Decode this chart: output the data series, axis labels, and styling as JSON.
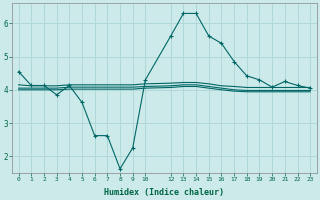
{
  "background_color": "#cceaea",
  "grid_color": "#b0d8d8",
  "line_color": "#006666",
  "xlabel": "Humidex (Indice chaleur)",
  "xlim": [
    -0.5,
    23.5
  ],
  "ylim": [
    1.5,
    6.6
  ],
  "yticks": [
    2,
    3,
    4,
    5,
    6
  ],
  "xticks": [
    0,
    1,
    2,
    3,
    4,
    5,
    6,
    7,
    8,
    9,
    10,
    12,
    13,
    14,
    15,
    16,
    17,
    18,
    19,
    20,
    21,
    22,
    23
  ],
  "series1_x": [
    0,
    1,
    2,
    3,
    4,
    5,
    6,
    7,
    8,
    9,
    10,
    12,
    13,
    14,
    15,
    16,
    17,
    18,
    19,
    20,
    21,
    22,
    23
  ],
  "series1_y": [
    4.55,
    4.13,
    4.13,
    3.85,
    4.13,
    3.62,
    2.62,
    2.62,
    1.62,
    2.25,
    4.3,
    5.62,
    6.3,
    6.3,
    5.62,
    5.4,
    4.85,
    4.42,
    4.3,
    4.08,
    4.25,
    4.13,
    4.05
  ],
  "series2_x": [
    0,
    1,
    2,
    3,
    4,
    5,
    6,
    7,
    8,
    9,
    10,
    12,
    13,
    14,
    15,
    16,
    17,
    18,
    19,
    20,
    21,
    22,
    23
  ],
  "series2_y": [
    4.15,
    4.12,
    4.12,
    4.12,
    4.15,
    4.15,
    4.15,
    4.15,
    4.15,
    4.15,
    4.18,
    4.2,
    4.22,
    4.22,
    4.18,
    4.12,
    4.1,
    4.07,
    4.07,
    4.07,
    4.07,
    4.07,
    4.07
  ],
  "series3_x": [
    0,
    1,
    2,
    3,
    4,
    5,
    6,
    7,
    8,
    9,
    10,
    12,
    13,
    14,
    15,
    16,
    17,
    18,
    19,
    20,
    21,
    22,
    23
  ],
  "series3_y": [
    4.05,
    4.05,
    4.05,
    4.05,
    4.08,
    4.08,
    4.08,
    4.08,
    4.08,
    4.08,
    4.1,
    4.12,
    4.15,
    4.15,
    4.1,
    4.05,
    4.0,
    3.98,
    3.98,
    3.98,
    3.98,
    3.98,
    3.98
  ],
  "series4_x": [
    0,
    1,
    2,
    3,
    4,
    5,
    6,
    7,
    8,
    9,
    10,
    12,
    13,
    14,
    15,
    16,
    17,
    18,
    19,
    20,
    21,
    22,
    23
  ],
  "series4_y": [
    4.0,
    4.0,
    4.0,
    4.0,
    4.02,
    4.02,
    4.02,
    4.02,
    4.02,
    4.02,
    4.05,
    4.07,
    4.1,
    4.1,
    4.05,
    4.0,
    3.96,
    3.94,
    3.94,
    3.94,
    3.94,
    3.94,
    3.94
  ]
}
